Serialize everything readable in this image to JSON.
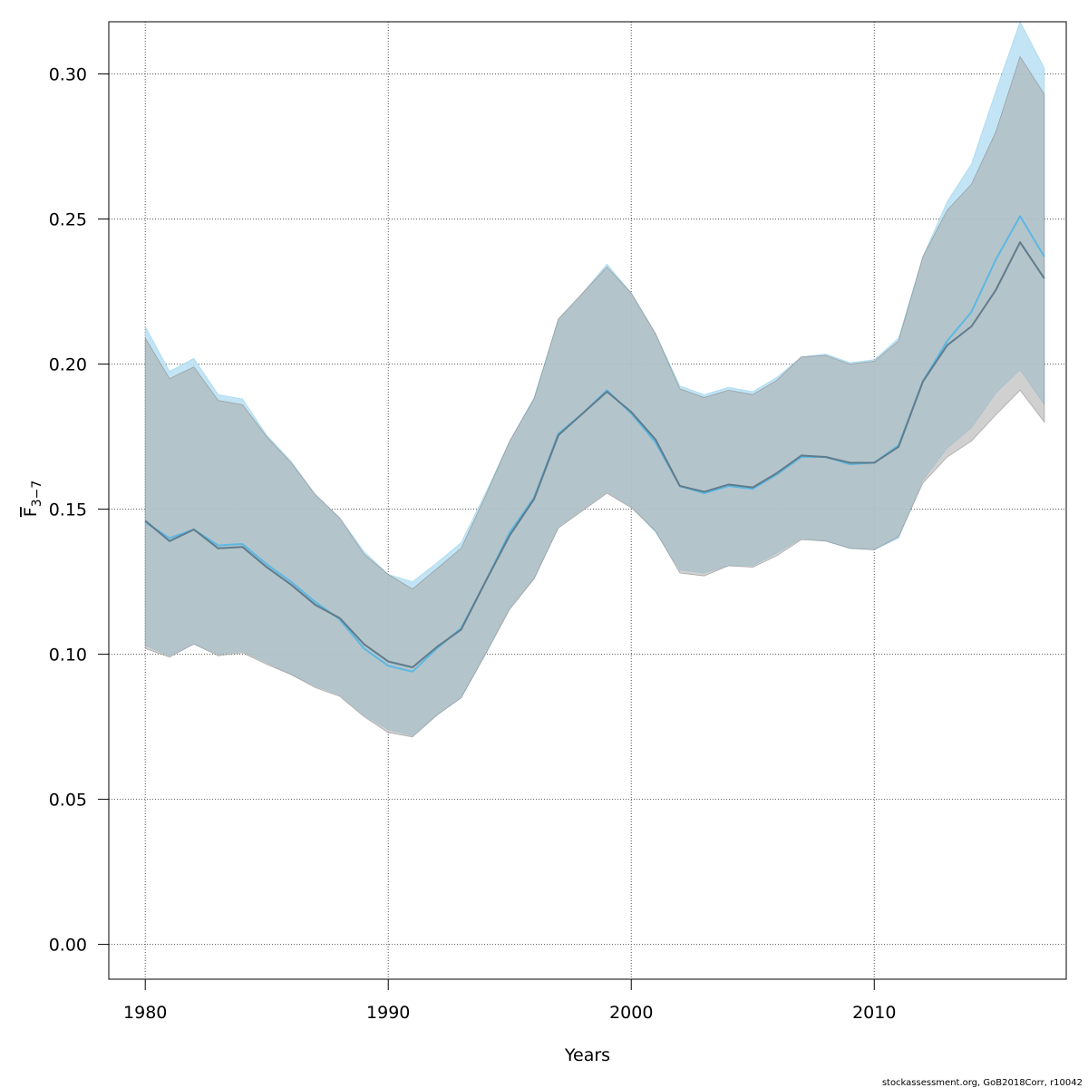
{
  "chart_data": {
    "type": "area",
    "xlabel": "Years",
    "ylabel": "F",
    "ylabel_subscript": "3−7",
    "xlim": [
      1978.5,
      2017.9
    ],
    "ylim": [
      -0.012,
      0.318
    ],
    "grid": true,
    "x_ticks": [
      1980,
      1990,
      2000,
      2010
    ],
    "x_tick_labels": [
      "1980",
      "1990",
      "2000",
      "2010"
    ],
    "y_ticks": [
      0.0,
      0.05,
      0.1,
      0.15,
      0.2,
      0.25,
      0.3
    ],
    "y_tick_labels": [
      "0.00",
      "0.05",
      "0.10",
      "0.15",
      "0.20",
      "0.25",
      "0.30"
    ],
    "x": [
      1980,
      1981,
      1982,
      1983,
      1984,
      1985,
      1986,
      1987,
      1988,
      1989,
      1990,
      1991,
      1992,
      1993,
      1994,
      1995,
      1996,
      1997,
      1998,
      1999,
      2000,
      2001,
      2002,
      2003,
      2004,
      2005,
      2006,
      2007,
      2008,
      2009,
      2010,
      2011,
      2012,
      2013,
      2014,
      2015,
      2016,
      2017
    ],
    "series": [
      {
        "color": "#87ceeb",
        "band_color": "#b7dff2",
        "line_color": "#5bb8e3",
        "values": [
          0.1455,
          0.14,
          0.143,
          0.1375,
          0.138,
          0.131,
          0.125,
          0.118,
          0.112,
          0.102,
          0.096,
          0.094,
          0.102,
          0.109,
          0.125,
          0.142,
          0.154,
          0.176,
          0.183,
          0.191,
          0.183,
          0.173,
          0.158,
          0.1555,
          0.158,
          0.157,
          0.162,
          0.168,
          0.168,
          0.1655,
          0.166,
          0.172,
          0.194,
          0.208,
          0.218,
          0.236,
          0.251,
          0.237
        ],
        "lower": [
          0.103,
          0.0995,
          0.1035,
          0.1,
          0.101,
          0.097,
          0.093,
          0.089,
          0.086,
          0.079,
          0.074,
          0.072,
          0.079,
          0.085,
          0.1,
          0.116,
          0.126,
          0.144,
          0.15,
          0.156,
          0.151,
          0.142,
          0.129,
          0.128,
          0.1305,
          0.1305,
          0.135,
          0.14,
          0.139,
          0.1365,
          0.136,
          0.14,
          0.16,
          0.171,
          0.178,
          0.19,
          0.198,
          0.186
        ],
        "upper": [
          0.213,
          0.1975,
          0.202,
          0.1895,
          0.188,
          0.1755,
          0.1665,
          0.155,
          0.147,
          0.1355,
          0.1275,
          0.125,
          0.1315,
          0.1385,
          0.1555,
          0.1735,
          0.1885,
          0.2155,
          0.2245,
          0.2345,
          0.2245,
          0.2105,
          0.1925,
          0.1895,
          0.192,
          0.1905,
          0.1955,
          0.2025,
          0.2035,
          0.2005,
          0.2015,
          0.209,
          0.237,
          0.256,
          0.269,
          0.294,
          0.318,
          0.302
        ]
      },
      {
        "color": "#808080",
        "band_color": "#a9a9a9",
        "line_color": "#5f7c8c",
        "values": [
          0.146,
          0.139,
          0.143,
          0.1365,
          0.137,
          0.13,
          0.124,
          0.117,
          0.1125,
          0.1035,
          0.0975,
          0.0955,
          0.1025,
          0.1085,
          0.125,
          0.141,
          0.1535,
          0.1755,
          0.183,
          0.1905,
          0.1835,
          0.174,
          0.158,
          0.156,
          0.1585,
          0.1575,
          0.1625,
          0.1685,
          0.168,
          0.166,
          0.166,
          0.1715,
          0.194,
          0.2065,
          0.213,
          0.2255,
          0.242,
          0.2295
        ],
        "lower": [
          0.102,
          0.099,
          0.1035,
          0.0995,
          0.1005,
          0.0965,
          0.093,
          0.0885,
          0.0855,
          0.0785,
          0.073,
          0.0715,
          0.079,
          0.085,
          0.1,
          0.1155,
          0.126,
          0.1435,
          0.1495,
          0.1555,
          0.1505,
          0.1425,
          0.128,
          0.127,
          0.1305,
          0.13,
          0.134,
          0.1395,
          0.139,
          0.1365,
          0.136,
          0.1405,
          0.159,
          0.168,
          0.1735,
          0.1825,
          0.191,
          0.18
        ],
        "upper": [
          0.209,
          0.195,
          0.199,
          0.1875,
          0.186,
          0.175,
          0.166,
          0.155,
          0.147,
          0.1345,
          0.1275,
          0.1225,
          0.1295,
          0.1365,
          0.1545,
          0.1735,
          0.188,
          0.2155,
          0.2245,
          0.2335,
          0.2245,
          0.2105,
          0.1915,
          0.1885,
          0.191,
          0.1895,
          0.1945,
          0.2025,
          0.203,
          0.2,
          0.201,
          0.208,
          0.237,
          0.253,
          0.262,
          0.28,
          0.306,
          0.293
        ]
      }
    ]
  },
  "footer": {
    "credit": "stockassessment.org, GoB2018Corr, r10042"
  }
}
